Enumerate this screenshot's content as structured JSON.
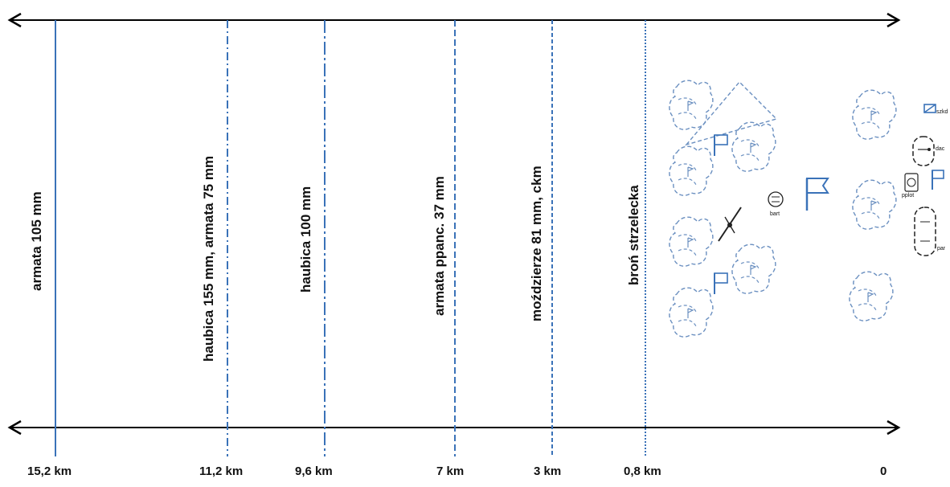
{
  "ranges": [
    {
      "label": "armata 105 mm",
      "distance": "15,2 km",
      "style": "solid"
    },
    {
      "label": "haubica 155 mm, armata 75 mm",
      "distance": "11,2 km",
      "style": "dashdot"
    },
    {
      "label": "haubica 100 mm",
      "distance": "9,6 km",
      "style": "longdashdot"
    },
    {
      "label": "armata ppanc. 37 mm",
      "distance": "7 km",
      "style": "dash"
    },
    {
      "label": "moździerze 81 mm, ckm",
      "distance": "3 km",
      "style": "shortdash"
    },
    {
      "label": "broń strzelecka",
      "distance": "0,8 km",
      "style": "dot"
    }
  ],
  "origin_label": "0",
  "unit_tags": {
    "bart": "bart",
    "pplot": "pplot",
    "szkd": "szkd",
    "dac": "dac",
    "part": "par"
  },
  "colors": {
    "line": "#3a72b8",
    "symbol": "#6a8fc0",
    "arrow": "#000000"
  }
}
